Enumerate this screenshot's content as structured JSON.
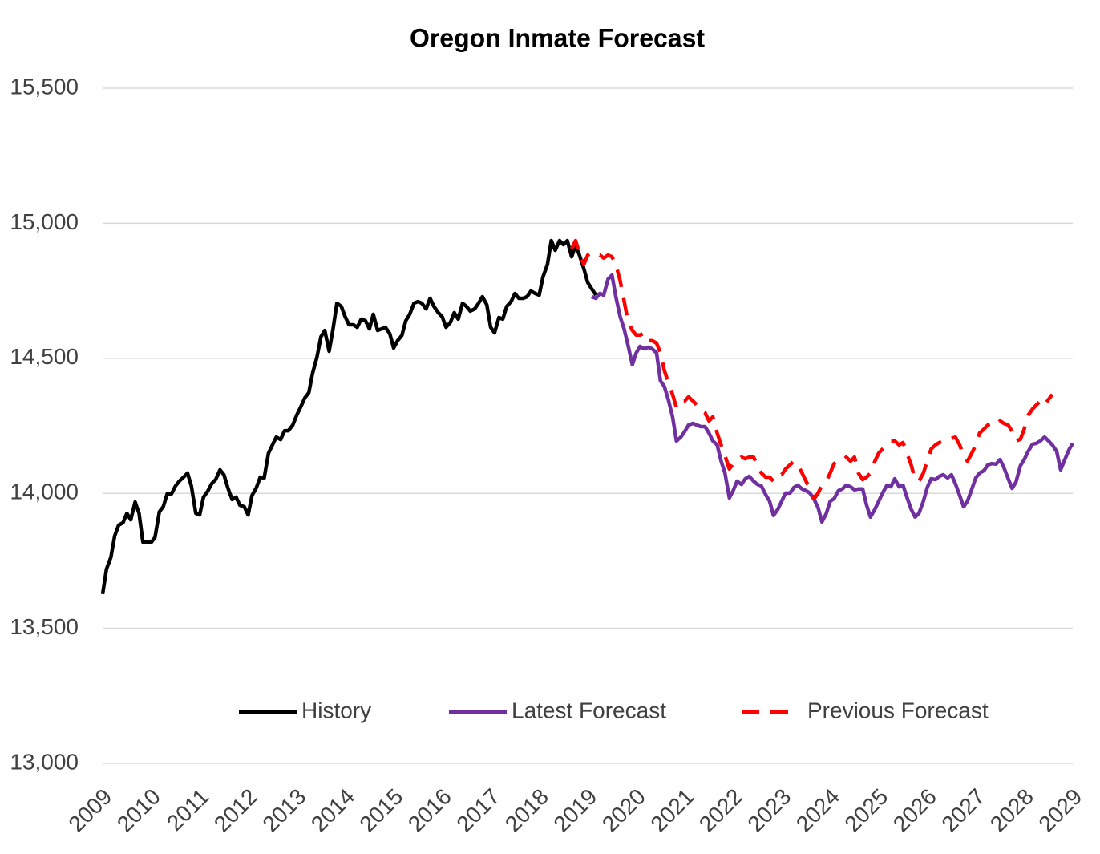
{
  "chart_data": {
    "type": "line",
    "title": "Oregon Inmate Forecast",
    "xlim": [
      2009,
      2029
    ],
    "xticks": [
      2009,
      2010,
      2011,
      2012,
      2013,
      2014,
      2015,
      2016,
      2017,
      2018,
      2019,
      2020,
      2021,
      2022,
      2023,
      2024,
      2025,
      2026,
      2027,
      2028,
      2029
    ],
    "ylim": [
      13000,
      15500
    ],
    "yticks": [
      {
        "value": 13000,
        "label": "13,000"
      },
      {
        "value": 13500,
        "label": "13,500"
      },
      {
        "value": 14000,
        "label": "14,000"
      },
      {
        "value": 14500,
        "label": "14,500"
      },
      {
        "value": 15000,
        "label": "15,000"
      },
      {
        "value": 15500,
        "label": "15,500"
      }
    ],
    "grid": true,
    "legend": "bottom",
    "series": [
      {
        "name": "History",
        "color": "#000000",
        "dashed": false,
        "x": [
          2009,
          2009.08,
          2009.17,
          2009.25,
          2009.33,
          2009.42,
          2009.5,
          2009.58,
          2009.67,
          2009.75,
          2009.83,
          2009.92,
          2010,
          2010.08,
          2010.17,
          2010.25,
          2010.33,
          2010.42,
          2010.5,
          2010.58,
          2010.67,
          2010.75,
          2010.83,
          2010.92,
          2011,
          2011.08,
          2011.17,
          2011.25,
          2011.33,
          2011.42,
          2011.5,
          2011.58,
          2011.67,
          2011.75,
          2011.83,
          2011.92,
          2012,
          2012.08,
          2012.17,
          2012.25,
          2012.33,
          2012.42,
          2012.5,
          2012.58,
          2012.67,
          2012.75,
          2012.83,
          2012.92,
          2013,
          2013.08,
          2013.17,
          2013.25,
          2013.33,
          2013.42,
          2013.5,
          2013.58,
          2013.67,
          2013.75,
          2013.83,
          2013.92,
          2014,
          2014.08,
          2014.17,
          2014.25,
          2014.33,
          2014.42,
          2014.5,
          2014.58,
          2014.67,
          2014.75,
          2014.83,
          2014.92,
          2015,
          2015.08,
          2015.17,
          2015.25,
          2015.33,
          2015.42,
          2015.5,
          2015.58,
          2015.67,
          2015.75,
          2015.83,
          2015.92,
          2016,
          2016.08,
          2016.17,
          2016.25,
          2016.33,
          2016.42,
          2016.5,
          2016.58,
          2016.67,
          2016.75,
          2016.83,
          2016.92,
          2017,
          2017.08,
          2017.17,
          2017.25,
          2017.33,
          2017.42,
          2017.5,
          2017.58,
          2017.67,
          2017.75,
          2017.83,
          2017.92,
          2018,
          2018.08,
          2018.17,
          2018.25,
          2018.33,
          2018.42,
          2018.5,
          2018.58,
          2018.67,
          2018.75,
          2018.83,
          2018.92,
          2019,
          2019.08,
          2019.17
        ],
        "values": [
          13627,
          13719,
          13763,
          13843,
          13882,
          13891,
          13926,
          13902,
          13968,
          13926,
          13820,
          13820,
          13818,
          13837,
          13932,
          13950,
          13998,
          13998,
          14027,
          14045,
          14060,
          14075,
          14027,
          13926,
          13920,
          13986,
          14009,
          14036,
          14051,
          14087,
          14069,
          14021,
          13977,
          13986,
          13956,
          13950,
          13920,
          13992,
          14021,
          14060,
          14057,
          14149,
          14179,
          14208,
          14199,
          14232,
          14232,
          14253,
          14289,
          14318,
          14354,
          14372,
          14446,
          14505,
          14580,
          14603,
          14526,
          14609,
          14704,
          14692,
          14654,
          14624,
          14624,
          14615,
          14645,
          14639,
          14609,
          14663,
          14603,
          14609,
          14615,
          14591,
          14538,
          14565,
          14585,
          14639,
          14663,
          14704,
          14710,
          14704,
          14683,
          14722,
          14692,
          14669,
          14654,
          14615,
          14633,
          14669,
          14645,
          14704,
          14692,
          14675,
          14683,
          14704,
          14728,
          14698,
          14615,
          14594,
          14651,
          14645,
          14692,
          14710,
          14740,
          14722,
          14722,
          14728,
          14749,
          14740,
          14734,
          14802,
          14847,
          14936,
          14900,
          14936,
          14921,
          14936,
          14876,
          14918,
          14882,
          14832,
          14781,
          14758,
          14734
        ]
      },
      {
        "name": "Latest Forecast",
        "color": "#7030a0",
        "dashed": false,
        "x": [
          2019.08,
          2019.17,
          2019.25,
          2019.33,
          2019.42,
          2019.5,
          2019.58,
          2019.67,
          2019.75,
          2019.83,
          2019.92,
          2020,
          2020.08,
          2020.17,
          2020.25,
          2020.33,
          2020.42,
          2020.5,
          2020.58,
          2020.67,
          2020.75,
          2020.83,
          2020.92,
          2021,
          2021.08,
          2021.17,
          2021.25,
          2021.33,
          2021.42,
          2021.5,
          2021.58,
          2021.67,
          2021.75,
          2021.83,
          2021.92,
          2022,
          2022.08,
          2022.17,
          2022.25,
          2022.33,
          2022.42,
          2022.5,
          2022.58,
          2022.67,
          2022.75,
          2022.83,
          2022.92,
          2023,
          2023.08,
          2023.17,
          2023.25,
          2023.33,
          2023.42,
          2023.5,
          2023.58,
          2023.67,
          2023.75,
          2023.83,
          2023.92,
          2024,
          2024.08,
          2024.17,
          2024.25,
          2024.33,
          2024.42,
          2024.5,
          2024.58,
          2024.67,
          2024.75,
          2024.83,
          2024.92,
          2025,
          2025.08,
          2025.17,
          2025.25,
          2025.33,
          2025.42,
          2025.5,
          2025.58,
          2025.67,
          2025.75,
          2025.83,
          2025.92,
          2026,
          2026.08,
          2026.17,
          2026.25,
          2026.33,
          2026.42,
          2026.5,
          2026.58,
          2026.67,
          2026.75,
          2026.83,
          2026.92,
          2027,
          2027.08,
          2027.17,
          2027.25,
          2027.33,
          2027.42,
          2027.5,
          2027.58,
          2027.67,
          2027.75,
          2027.83,
          2027.92,
          2028,
          2028.08,
          2028.17,
          2028.25,
          2028.33,
          2028.42,
          2028.5,
          2028.58,
          2028.67,
          2028.75,
          2028.83,
          2028.92,
          2029
        ],
        "values": [
          14728,
          14722,
          14740,
          14734,
          14793,
          14808,
          14728,
          14654,
          14609,
          14550,
          14476,
          14520,
          14544,
          14535,
          14541,
          14535,
          14520,
          14416,
          14396,
          14342,
          14283,
          14194,
          14208,
          14229,
          14253,
          14259,
          14253,
          14247,
          14247,
          14223,
          14194,
          14179,
          14119,
          14075,
          13983,
          14010,
          14045,
          14033,
          14054,
          14063,
          14045,
          14033,
          14027,
          13995,
          13971,
          13918,
          13941,
          13971,
          14001,
          14001,
          14021,
          14030,
          14016,
          14010,
          14001,
          13977,
          13947,
          13894,
          13926,
          13971,
          13980,
          14010,
          14016,
          14030,
          14024,
          14013,
          14016,
          14016,
          13956,
          13912,
          13941,
          13971,
          14001,
          14030,
          14024,
          14054,
          14024,
          14030,
          13986,
          13941,
          13912,
          13926,
          13971,
          14021,
          14054,
          14051,
          14063,
          14069,
          14057,
          14069,
          14036,
          13992,
          13950,
          13971,
          14016,
          14057,
          14075,
          14084,
          14105,
          14110,
          14108,
          14125,
          14096,
          14054,
          14018,
          14042,
          14102,
          14125,
          14155,
          14182,
          14185,
          14194,
          14208,
          14194,
          14179,
          14155,
          14087,
          14122,
          14161,
          14185
        ]
      },
      {
        "name": "Previous Forecast",
        "color": "#ff0000",
        "dashed": true,
        "x": [
          2018.67,
          2018.75,
          2018.83,
          2018.92,
          2019,
          2019.08,
          2019.17,
          2019.25,
          2019.33,
          2019.42,
          2019.5,
          2019.58,
          2019.67,
          2019.75,
          2019.83,
          2019.92,
          2020,
          2020.08,
          2020.17,
          2020.25,
          2020.33,
          2020.42,
          2020.5,
          2020.58,
          2020.67,
          2020.75,
          2020.83,
          2020.92,
          2021,
          2021.08,
          2021.17,
          2021.25,
          2021.33,
          2021.42,
          2021.5,
          2021.58,
          2021.67,
          2021.75,
          2021.83,
          2021.92,
          2022,
          2022.08,
          2022.17,
          2022.25,
          2022.33,
          2022.42,
          2022.5,
          2022.58,
          2022.67,
          2022.75,
          2022.83,
          2022.92,
          2023,
          2023.08,
          2023.17,
          2023.25,
          2023.33,
          2023.42,
          2023.5,
          2023.58,
          2023.67,
          2023.75,
          2023.83,
          2023.92,
          2024,
          2024.08,
          2024.17,
          2024.25,
          2024.33,
          2024.42,
          2024.5,
          2024.58,
          2024.67,
          2024.75,
          2024.83,
          2024.92,
          2025,
          2025.08,
          2025.17,
          2025.25,
          2025.33,
          2025.42,
          2025.5,
          2025.58,
          2025.67,
          2025.75,
          2025.83,
          2025.92,
          2026,
          2026.08,
          2026.17,
          2026.25,
          2026.33,
          2026.42,
          2026.5,
          2026.58,
          2026.67,
          2026.75,
          2026.83,
          2026.92,
          2027,
          2027.08,
          2027.17,
          2027.25,
          2027.33,
          2027.42,
          2027.5,
          2027.58,
          2027.67,
          2027.75,
          2027.83,
          2027.92,
          2028,
          2028.08,
          2028.17,
          2028.25,
          2028.33,
          2028.42,
          2028.5,
          2028.58
        ],
        "values": [
          14906,
          14936,
          14891,
          14847,
          14882,
          14891,
          14882,
          14882,
          14871,
          14882,
          14876,
          14847,
          14787,
          14713,
          14639,
          14603,
          14586,
          14586,
          14594,
          14565,
          14565,
          14556,
          14520,
          14455,
          14407,
          14366,
          14318,
          14342,
          14342,
          14357,
          14342,
          14327,
          14306,
          14298,
          14268,
          14283,
          14223,
          14179,
          14140,
          14090,
          14110,
          14119,
          14134,
          14128,
          14134,
          14134,
          14105,
          14075,
          14060,
          14060,
          14045,
          14069,
          14069,
          14090,
          14105,
          14119,
          14105,
          14075,
          14045,
          14016,
          13980,
          14001,
          14030,
          14045,
          14075,
          14110,
          14119,
          14119,
          14134,
          14119,
          14134,
          14075,
          14051,
          14060,
          14075,
          14119,
          14149,
          14164,
          14179,
          14194,
          14194,
          14179,
          14188,
          14149,
          14105,
          14051,
          14045,
          14075,
          14119,
          14164,
          14179,
          14188,
          14194,
          14194,
          14203,
          14208,
          14179,
          14140,
          14119,
          14149,
          14179,
          14223,
          14238,
          14253,
          14259,
          14253,
          14268,
          14259,
          14253,
          14229,
          14194,
          14200,
          14238,
          14289,
          14312,
          14327,
          14342,
          14327,
          14348,
          14366
        ]
      }
    ]
  }
}
